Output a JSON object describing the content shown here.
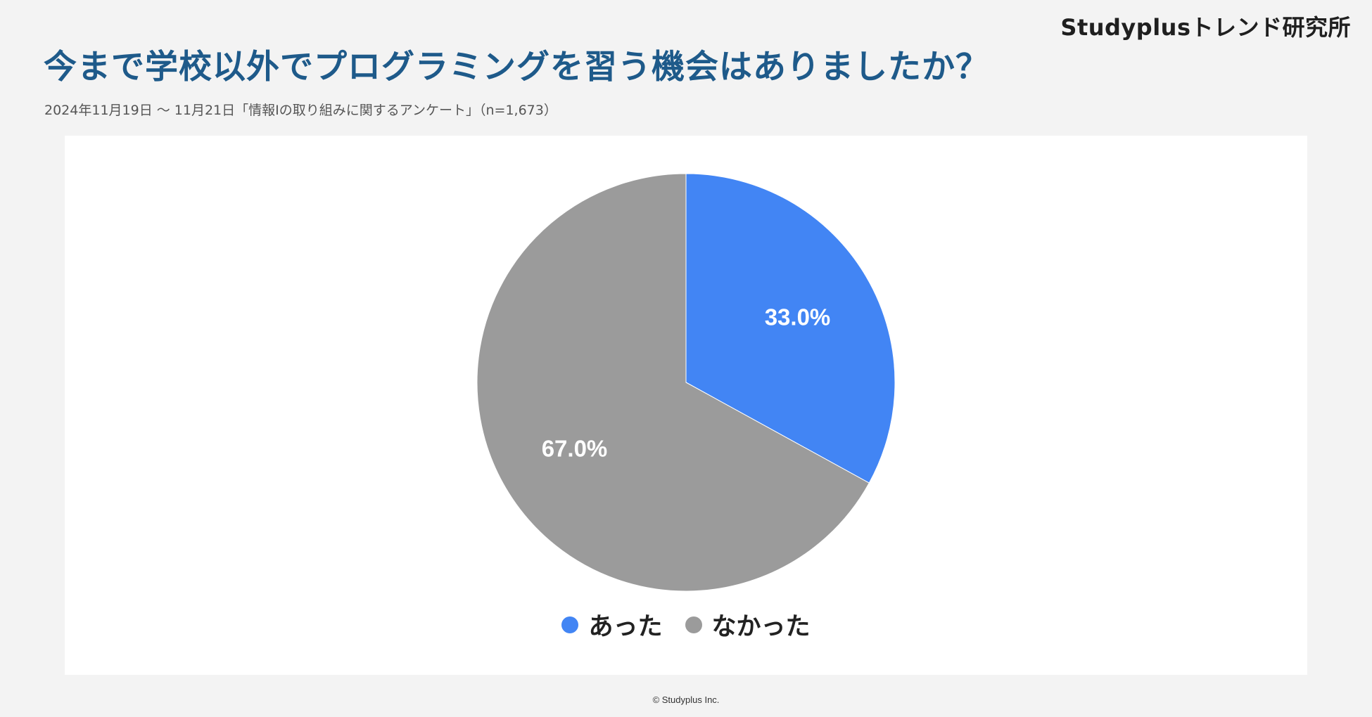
{
  "brand": "Studyplusトレンド研究所",
  "footer": "© Studyplus Inc.",
  "chart_data": {
    "type": "pie",
    "title": "今まで学校以外でプログラミングを習う機会はありましたか？",
    "subtitle": "2024年11月19日 〜 11月21日「情報Ⅰの取り組みに関するアンケート」（n=1,673）",
    "labels": [
      "あった",
      "なかった"
    ],
    "values": [
      33.0,
      67.0
    ],
    "value_labels": [
      "33.0%",
      "67.0%"
    ],
    "colors": [
      "#4285f4",
      "#9b9b9b"
    ],
    "legend_position": "bottom"
  }
}
